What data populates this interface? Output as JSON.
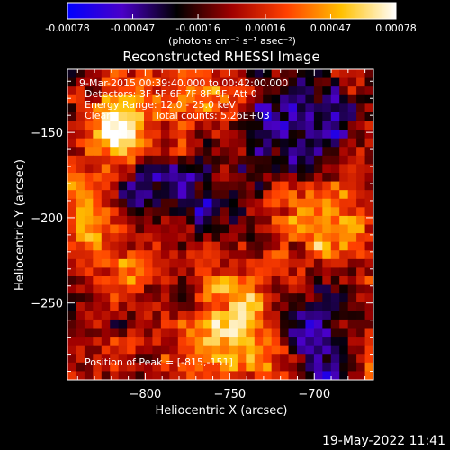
{
  "colorbar": {
    "ticks": [
      "-0.00078",
      "-0.00047",
      "-0.00016",
      "0.00016",
      "0.00047",
      "0.00078"
    ],
    "tick_values": [
      -0.00078,
      -0.00047,
      -0.00016,
      0.00016,
      0.00047,
      0.00078
    ],
    "range": [
      -0.00078,
      0.00078
    ],
    "unit_label": "(photons cm⁻² s⁻¹ asec⁻²)",
    "colors": [
      "#0000ff",
      "#4a00c8",
      "#000000",
      "#a00000",
      "#ff4000",
      "#ffc000",
      "#ffffff"
    ]
  },
  "chart_data": {
    "type": "heatmap",
    "title": "Reconstructed RHESSI Image",
    "xlabel": "Heliocentric X (arcsec)",
    "ylabel": "Heliocentric Y (arcsec)",
    "xlim": [
      -846,
      -665
    ],
    "ylim": [
      -295,
      -113
    ],
    "xticks": [
      -800,
      -750,
      -700
    ],
    "yticks": [
      -150,
      -200,
      -250
    ],
    "peak": {
      "x": -815,
      "y": -151
    },
    "grid": false,
    "annotations": {
      "time_range": "9-Mar-2015 00:39:40.000 to 00:42:00.000",
      "detectors": "Detectors: 3F 5F 6F 7F 8F 9F, Att 0",
      "energy": "Energy Range: 12.0 - 25.0 keV",
      "clean": "Clean",
      "counts": "Total counts: 5.26E+03",
      "peak_text": "Position of Peak = [-815,-151]"
    }
  },
  "footer": {
    "timestamp": "19-May-2022 11:41"
  }
}
